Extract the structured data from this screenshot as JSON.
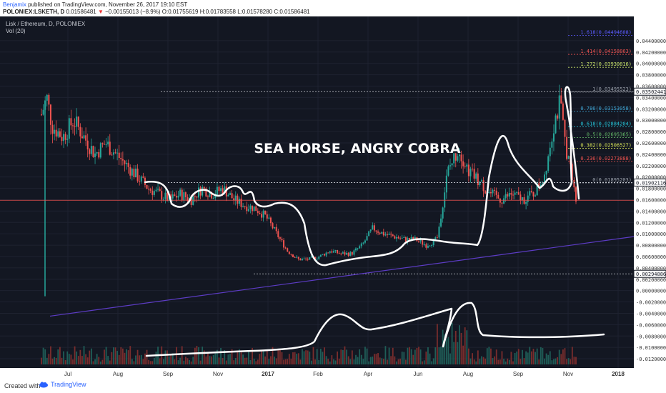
{
  "header": {
    "author": "Benjamix",
    "published_text": "published on TradingView.com, November 26, 2017 19:10 EST",
    "symbol": "POLONIEX:LSKETH, D",
    "last": "0.01586481",
    "change_arrow": "▼",
    "change": "−0.00155013 (−8.9%)",
    "ohlc": "O:0.01755619 H:0.01783558 L:0.01578280 C:0.01586481"
  },
  "pane": {
    "title": "Lisk / Ethereum, D, POLONIEX",
    "volume_label": "Vol (20)"
  },
  "annotation_text": "SEA HORSE, ANGRY COBRA",
  "footer": {
    "created_with": "Created with",
    "brand": "TradingView"
  },
  "colors": {
    "background": "#131722",
    "up": "#26a69a",
    "down": "#ef5350",
    "drawing": "#ffffff",
    "trendline": "#5c3cc4"
  },
  "chart_data": {
    "type": "candlestick",
    "x_tick_labels": [
      "Jul",
      "Aug",
      "Sep",
      "Nov",
      "2017",
      "Feb",
      "Apr",
      "Jun",
      "Aug",
      "Sep",
      "Nov",
      "2018"
    ],
    "price_axis_labels": [
      "0.04400000",
      "0.04200000",
      "0.04000000",
      "0.03800000",
      "0.03600000",
      "0.03400000",
      "0.03200000",
      "0.03000000",
      "0.02800000",
      "0.02600000",
      "0.02400000",
      "0.02200000",
      "0.02000000",
      "0.01800000",
      "0.01600000",
      "0.01400000",
      "0.01200000",
      "0.01000000",
      "0.00800000",
      "0.00600000",
      "0.00400000",
      "0.00200000",
      "0.00000000",
      "-0.00200000",
      "-0.00400000",
      "-0.00600000",
      "-0.00800000",
      "-0.01000000",
      "-0.01200000"
    ],
    "y_range": [
      -0.013,
      0.046
    ],
    "highlighted_prices": [
      {
        "label": "0.03502441",
        "value": 0.03502441
      },
      {
        "label": "0.01902116",
        "value": 0.01902116
      },
      {
        "label": "0.00294886",
        "value": 0.00294886
      }
    ],
    "fibonacci_levels": [
      {
        "label": "1.618(0.04494608)",
        "value": 0.04494608,
        "color": "#5c5cff"
      },
      {
        "label": "1.414(0.04158863)",
        "value": 0.04158863,
        "color": "#ef5350"
      },
      {
        "label": "1.272(0.03930816)",
        "value": 0.03930816,
        "color": "#c8e26a"
      },
      {
        "label": "1(0.03495523)",
        "value": 0.03495523,
        "color": "#9aa0ab"
      },
      {
        "label": "0.786(0.03153058)",
        "value": 0.03153058,
        "color": "#3fa7d6"
      },
      {
        "label": "0.618(0.02884204)",
        "value": 0.02884204,
        "color": "#26c6da"
      },
      {
        "label": "0.5(0.02695365)",
        "value": 0.02695365,
        "color": "#66bb6a"
      },
      {
        "label": "0.382(0.02506527)",
        "value": 0.02506527,
        "color": "#d4e157"
      },
      {
        "label": "0.236(0.02273888)",
        "value": 0.02273888,
        "color": "#ef5350"
      },
      {
        "label": "0(0.01895203)",
        "value": 0.01895203,
        "color": "#9aa0ab"
      }
    ],
    "price_path": [
      [
        0.0,
        0.031
      ],
      [
        0.01,
        0.034
      ],
      [
        0.02,
        0.029
      ],
      [
        0.04,
        0.027
      ],
      [
        0.06,
        0.03
      ],
      [
        0.08,
        0.027
      ],
      [
        0.1,
        0.024
      ],
      [
        0.12,
        0.026
      ],
      [
        0.14,
        0.024
      ],
      [
        0.16,
        0.022
      ],
      [
        0.18,
        0.02
      ],
      [
        0.2,
        0.018
      ],
      [
        0.22,
        0.017
      ],
      [
        0.24,
        0.016
      ],
      [
        0.26,
        0.017
      ],
      [
        0.28,
        0.016
      ],
      [
        0.3,
        0.018
      ],
      [
        0.32,
        0.017
      ],
      [
        0.34,
        0.018
      ],
      [
        0.36,
        0.016
      ],
      [
        0.38,
        0.015
      ],
      [
        0.4,
        0.0145
      ],
      [
        0.42,
        0.013
      ],
      [
        0.44,
        0.01
      ],
      [
        0.46,
        0.007
      ],
      [
        0.48,
        0.0055
      ],
      [
        0.5,
        0.0055
      ],
      [
        0.52,
        0.006
      ],
      [
        0.54,
        0.007
      ],
      [
        0.56,
        0.0065
      ],
      [
        0.58,
        0.0065
      ],
      [
        0.6,
        0.008
      ],
      [
        0.62,
        0.011
      ],
      [
        0.64,
        0.01
      ],
      [
        0.66,
        0.0095
      ],
      [
        0.68,
        0.009
      ],
      [
        0.7,
        0.009
      ],
      [
        0.72,
        0.008
      ],
      [
        0.74,
        0.009
      ],
      [
        0.76,
        0.021
      ],
      [
        0.78,
        0.025
      ],
      [
        0.8,
        0.021
      ],
      [
        0.82,
        0.019
      ],
      [
        0.84,
        0.017
      ],
      [
        0.86,
        0.016
      ],
      [
        0.88,
        0.017
      ],
      [
        0.9,
        0.016
      ],
      [
        0.92,
        0.017
      ],
      [
        0.94,
        0.02
      ],
      [
        0.96,
        0.03
      ],
      [
        0.97,
        0.033
      ],
      [
        0.98,
        0.026
      ],
      [
        1.0,
        0.016
      ]
    ]
  }
}
